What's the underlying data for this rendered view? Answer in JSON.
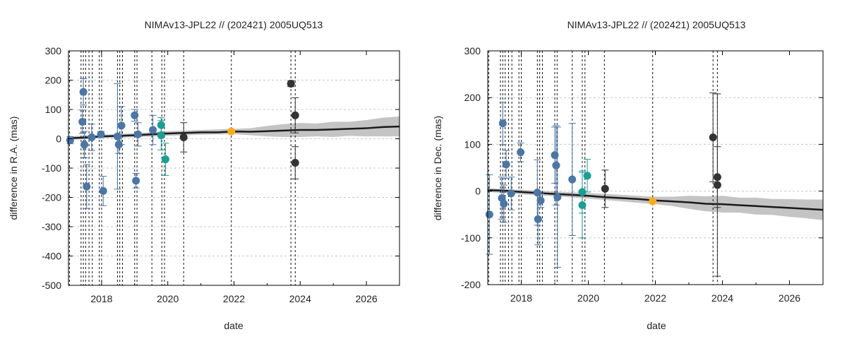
{
  "chart_data": [
    {
      "type": "scatter",
      "title": "NIMAv13-JPL22 // (202421) 2005UQ513",
      "xlabel": "date",
      "ylabel": "difference in R.A. (mas)",
      "xlim": [
        2017.0,
        2027.0
      ],
      "ylim": [
        -500,
        300
      ],
      "xticks": [
        2018,
        2020,
        2022,
        2024,
        2026
      ],
      "xtick_labels": [
        "2018",
        "2020",
        "2022",
        "2024",
        "2026"
      ],
      "yticks": [
        -500,
        -400,
        -300,
        -200,
        -100,
        0,
        100,
        200,
        300
      ],
      "grid": true,
      "epoch_lines": [
        2017.03,
        2017.38,
        2017.45,
        2017.52,
        2017.62,
        2017.72,
        2017.93,
        2018.0,
        2018.48,
        2018.55,
        2018.63,
        2019.0,
        2019.07,
        2019.52,
        2019.82,
        2019.9,
        2020.48,
        2021.92,
        2023.72,
        2023.85
      ],
      "model_line": [
        [
          2017.0,
          2
        ],
        [
          2017.5,
          4
        ],
        [
          2018.0,
          8
        ],
        [
          2018.5,
          10
        ],
        [
          2019.0,
          12
        ],
        [
          2019.5,
          15
        ],
        [
          2020.0,
          18
        ],
        [
          2020.5,
          20
        ],
        [
          2021.0,
          22
        ],
        [
          2021.5,
          22
        ],
        [
          2022.0,
          25
        ],
        [
          2022.5,
          24
        ],
        [
          2023.0,
          26
        ],
        [
          2023.5,
          28
        ],
        [
          2024.0,
          30
        ],
        [
          2024.5,
          30
        ],
        [
          2025.0,
          32
        ],
        [
          2025.5,
          34
        ],
        [
          2026.0,
          36
        ],
        [
          2026.5,
          40
        ],
        [
          2027.0,
          42
        ]
      ],
      "uncertainty_band": [
        [
          2017.0,
          6
        ],
        [
          2018.0,
          6
        ],
        [
          2019.0,
          7
        ],
        [
          2020.0,
          8
        ],
        [
          2021.0,
          8
        ],
        [
          2022.0,
          9
        ],
        [
          2022.5,
          12
        ],
        [
          2023.0,
          18
        ],
        [
          2023.5,
          22
        ],
        [
          2024.0,
          24
        ],
        [
          2024.5,
          22
        ],
        [
          2025.0,
          26
        ],
        [
          2025.5,
          24
        ],
        [
          2026.0,
          28
        ],
        [
          2026.5,
          32
        ],
        [
          2027.0,
          34
        ]
      ],
      "series": [
        {
          "color": "#4a76a8",
          "points": [
            {
              "x": 2017.05,
              "y": -5,
              "err": 12
            },
            {
              "x": 2017.42,
              "y": 58,
              "err": 40
            },
            {
              "x": 2017.45,
              "y": 160,
              "err": 45
            },
            {
              "x": 2017.48,
              "y": -20,
              "err": 45
            },
            {
              "x": 2017.55,
              "y": -163,
              "err": 75
            },
            {
              "x": 2017.7,
              "y": 5,
              "err": 45
            },
            {
              "x": 2017.98,
              "y": 15,
              "err": 10
            },
            {
              "x": 2018.05,
              "y": -178,
              "err": 50
            },
            {
              "x": 2018.48,
              "y": 8,
              "err": 180
            },
            {
              "x": 2018.52,
              "y": -20,
              "err": 30
            },
            {
              "x": 2018.6,
              "y": 45,
              "err": 65
            },
            {
              "x": 2019.0,
              "y": 80,
              "err": 20
            },
            {
              "x": 2019.04,
              "y": -143,
              "err": 25
            },
            {
              "x": 2019.1,
              "y": 15,
              "err": 40
            },
            {
              "x": 2019.55,
              "y": 30,
              "err": 50
            }
          ]
        },
        {
          "color": "#1a9e96",
          "points": [
            {
              "x": 2019.8,
              "y": 47,
              "err": 25
            },
            {
              "x": 2019.8,
              "y": 12,
              "err": 50
            },
            {
              "x": 2019.93,
              "y": -70,
              "err": 55
            }
          ]
        },
        {
          "color": "#333333",
          "points": [
            {
              "x": 2020.48,
              "y": 5,
              "err": 50
            },
            {
              "x": 2023.72,
              "y": 188,
              "err": 10
            },
            {
              "x": 2023.85,
              "y": 80,
              "err": 60
            },
            {
              "x": 2023.85,
              "y": -82,
              "err": 55
            }
          ]
        },
        {
          "color": "#ffad14",
          "points": [
            {
              "x": 2021.92,
              "y": 25,
              "err": 3
            }
          ]
        }
      ]
    },
    {
      "type": "scatter",
      "title": "NIMAv13-JPL22 // (202421) 2005UQ513",
      "xlabel": "date",
      "ylabel": "difference in Dec. (mas)",
      "xlim": [
        2017.0,
        2027.0
      ],
      "ylim": [
        -200,
        300
      ],
      "xticks": [
        2018,
        2020,
        2022,
        2024,
        2026
      ],
      "xtick_labels": [
        "2018",
        "2020",
        "2022",
        "2024",
        "2026"
      ],
      "yticks": [
        -200,
        -100,
        0,
        100,
        200,
        300
      ],
      "grid": true,
      "epoch_lines": [
        2017.03,
        2017.38,
        2017.45,
        2017.52,
        2017.62,
        2017.72,
        2017.93,
        2018.0,
        2018.48,
        2018.55,
        2018.63,
        2019.0,
        2019.07,
        2019.52,
        2019.82,
        2019.9,
        2020.48,
        2021.92,
        2023.72,
        2023.85
      ],
      "model_line": [
        [
          2017.0,
          2
        ],
        [
          2017.5,
          1
        ],
        [
          2018.0,
          -2
        ],
        [
          2018.5,
          -4
        ],
        [
          2019.0,
          -6
        ],
        [
          2019.5,
          -8
        ],
        [
          2020.0,
          -10
        ],
        [
          2020.5,
          -13
        ],
        [
          2021.0,
          -15
        ],
        [
          2021.5,
          -17
        ],
        [
          2022.0,
          -20
        ],
        [
          2022.5,
          -22
        ],
        [
          2023.0,
          -24
        ],
        [
          2023.5,
          -27
        ],
        [
          2024.0,
          -28
        ],
        [
          2024.5,
          -30
        ],
        [
          2025.0,
          -32
        ],
        [
          2025.5,
          -34
        ],
        [
          2026.0,
          -36
        ],
        [
          2026.5,
          -38
        ],
        [
          2027.0,
          -40
        ]
      ],
      "uncertainty_band": [
        [
          2017.0,
          4
        ],
        [
          2018.0,
          5
        ],
        [
          2019.0,
          5
        ],
        [
          2020.0,
          6
        ],
        [
          2021.0,
          7
        ],
        [
          2022.0,
          8
        ],
        [
          2022.5,
          10
        ],
        [
          2023.0,
          14
        ],
        [
          2023.5,
          16
        ],
        [
          2024.0,
          18
        ],
        [
          2024.5,
          16
        ],
        [
          2025.0,
          18
        ],
        [
          2025.5,
          17
        ],
        [
          2026.0,
          19
        ],
        [
          2026.5,
          20
        ],
        [
          2027.0,
          22
        ]
      ],
      "series": [
        {
          "color": "#4a76a8",
          "points": [
            {
              "x": 2017.05,
              "y": -50,
              "err": 85
            },
            {
              "x": 2017.42,
              "y": -15,
              "err": 45
            },
            {
              "x": 2017.45,
              "y": 145,
              "err": 45
            },
            {
              "x": 2017.48,
              "y": -27,
              "err": 40
            },
            {
              "x": 2017.55,
              "y": 57,
              "err": 30
            },
            {
              "x": 2017.7,
              "y": -5,
              "err": 35
            },
            {
              "x": 2017.98,
              "y": 83,
              "err": 20
            },
            {
              "x": 2018.48,
              "y": -3,
              "err": 70
            },
            {
              "x": 2018.5,
              "y": -60,
              "err": 55
            },
            {
              "x": 2018.58,
              "y": -20,
              "err": 15
            },
            {
              "x": 2019.0,
              "y": 77,
              "err": 60
            },
            {
              "x": 2019.04,
              "y": 55,
              "err": 85
            },
            {
              "x": 2019.08,
              "y": -13,
              "err": 150
            },
            {
              "x": 2019.52,
              "y": 25,
              "err": 120
            }
          ]
        },
        {
          "color": "#1a9e96",
          "points": [
            {
              "x": 2019.82,
              "y": -2,
              "err": 45
            },
            {
              "x": 2019.82,
              "y": -30,
              "err": 70
            },
            {
              "x": 2019.97,
              "y": 33,
              "err": 35
            }
          ]
        },
        {
          "color": "#333333",
          "points": [
            {
              "x": 2020.5,
              "y": 5,
              "err": 40
            },
            {
              "x": 2023.72,
              "y": 115,
              "err": 95
            },
            {
              "x": 2023.85,
              "y": 30,
              "err": 65
            },
            {
              "x": 2023.85,
              "y": 13,
              "err": 195
            }
          ]
        },
        {
          "color": "#ffad14",
          "points": [
            {
              "x": 2021.92,
              "y": -22,
              "err": 3
            }
          ]
        }
      ]
    }
  ]
}
